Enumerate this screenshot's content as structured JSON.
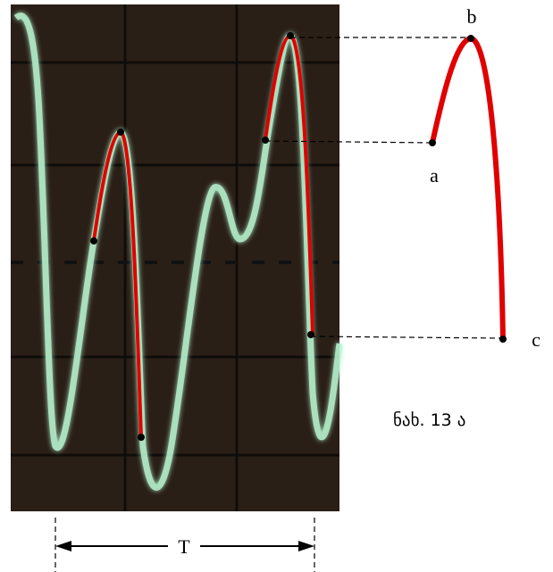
{
  "labels": {
    "a": "a",
    "b": "b",
    "c": "c"
  },
  "caption": "ნახ. 13 ა",
  "period_label": "T"
}
